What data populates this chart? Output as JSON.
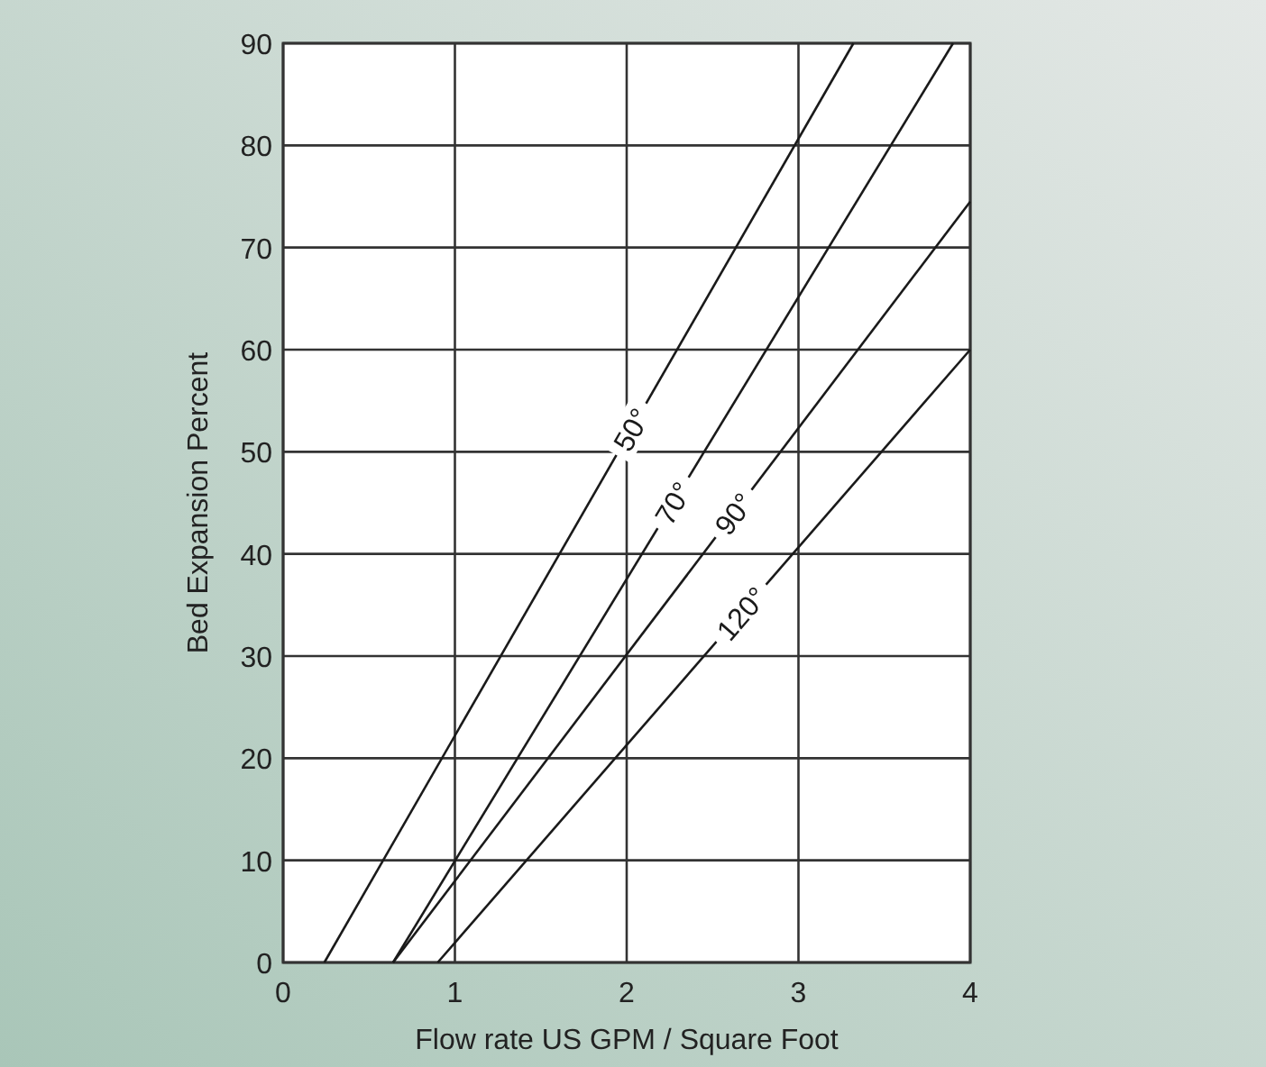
{
  "chart_data": {
    "type": "line",
    "xlabel": "Flow rate US GPM / Square Foot",
    "ylabel": "Bed Expansion Percent",
    "xlim": [
      0,
      4
    ],
    "ylim": [
      0,
      90
    ],
    "xticks": [
      0,
      1,
      2,
      3,
      4
    ],
    "yticks": [
      0,
      10,
      20,
      30,
      40,
      50,
      60,
      70,
      80,
      90
    ],
    "grid": true,
    "marker": "none",
    "line_style": "solid",
    "series": [
      {
        "name": "50°",
        "color": "#1a1a1a",
        "x": [
          0.24,
          3.32
        ],
        "values": [
          0,
          90
        ]
      },
      {
        "name": "70°",
        "color": "#1a1a1a",
        "x": [
          0.64,
          3.9
        ],
        "values": [
          0,
          90
        ]
      },
      {
        "name": "90°",
        "color": "#1a1a1a",
        "x": [
          0.64,
          4
        ],
        "values": [
          0,
          74.5
        ]
      },
      {
        "name": "120°",
        "color": "#1a1a1a",
        "x": [
          0.9,
          4
        ],
        "values": [
          0,
          60
        ]
      }
    ]
  }
}
